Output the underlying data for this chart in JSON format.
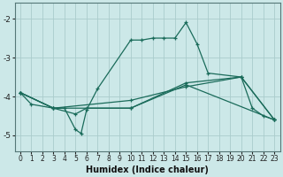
{
  "xlabel": "Humidex (Indice chaleur)",
  "background_color": "#cce8e8",
  "grid_color": "#aacccc",
  "line_color": "#1a6b5a",
  "xlim": [
    -0.5,
    23.5
  ],
  "ylim": [
    -5.4,
    -1.6
  ],
  "yticks": [
    -5,
    -4,
    -3,
    -2
  ],
  "xticks": [
    0,
    1,
    2,
    3,
    4,
    5,
    6,
    7,
    8,
    9,
    10,
    11,
    12,
    13,
    14,
    15,
    16,
    17,
    18,
    19,
    20,
    21,
    22,
    23
  ],
  "line1_x": [
    0,
    1,
    3,
    4,
    5,
    5.5,
    6,
    7,
    10,
    11,
    12,
    13,
    14,
    15,
    16,
    17,
    20,
    21,
    22,
    23
  ],
  "line1_y": [
    -3.9,
    -4.2,
    -4.3,
    -4.3,
    -4.85,
    -4.95,
    -4.35,
    -3.8,
    -2.55,
    -2.55,
    -2.5,
    -2.5,
    -2.5,
    -2.1,
    -2.65,
    -3.4,
    -3.5,
    -4.3,
    -4.5,
    -4.6
  ],
  "line2_x": [
    0,
    3,
    5,
    6,
    10,
    15,
    20,
    23
  ],
  "line2_y": [
    -3.9,
    -4.3,
    -4.45,
    -4.3,
    -4.3,
    -3.65,
    -3.5,
    -4.6
  ],
  "line3_x": [
    0,
    3,
    10,
    15,
    20,
    23
  ],
  "line3_y": [
    -3.9,
    -4.3,
    -4.1,
    -3.75,
    -3.5,
    -4.6
  ],
  "line4_x": [
    0,
    3,
    10,
    15,
    23
  ],
  "line4_y": [
    -3.9,
    -4.3,
    -4.3,
    -3.7,
    -4.6
  ]
}
